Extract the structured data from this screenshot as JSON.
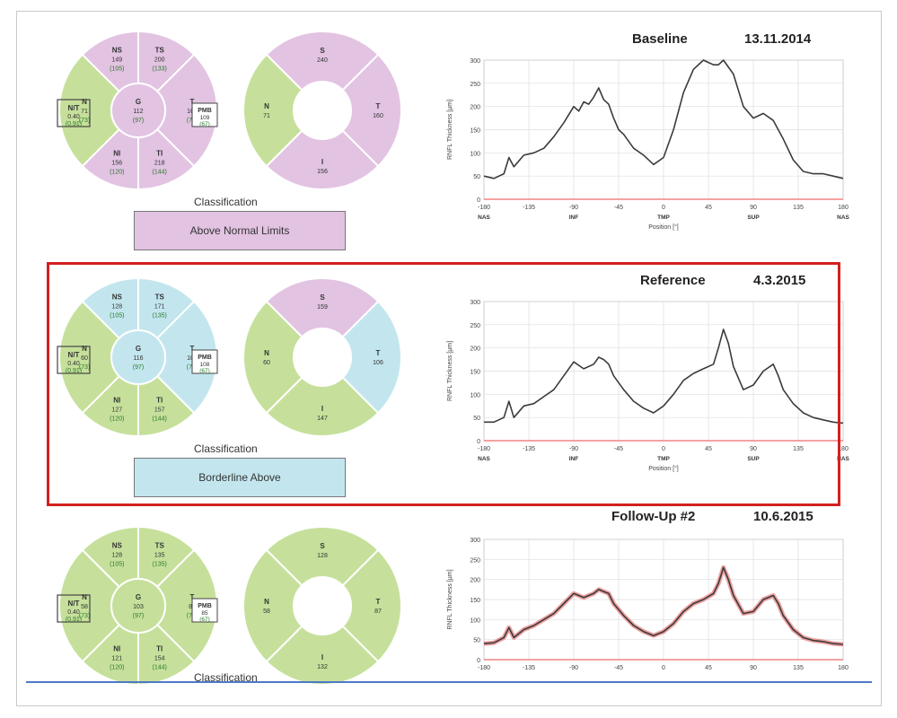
{
  "colors": {
    "above": "#e2c3e2",
    "borderline": "#c3e6ee",
    "normal": "#c6e09b",
    "ref_frame": "#d32020",
    "baseline_line": "#ee6a6a",
    "trace": "#3b3b3b",
    "band": "#e88888"
  },
  "icons": [
    "sector-map-icon"
  ],
  "panels": [
    {
      "id": "baseline",
      "title": "Baseline",
      "date": "13.11.2014",
      "classification_label": "Classification",
      "classification_result": "Above Normal Limits",
      "classification_color": "#e2c3e2",
      "sectors_left": {
        "NS": {
          "value": "149",
          "norm": "(105)",
          "status": "above"
        },
        "TS": {
          "value": "200",
          "norm": "(133)",
          "status": "above"
        },
        "N": {
          "value": "71",
          "norm": "(73)",
          "status": "normal"
        },
        "G": {
          "value": "112",
          "norm": "(97)",
          "status": "above"
        },
        "T": {
          "value": "160",
          "norm": "(75)",
          "status": "above"
        },
        "NI": {
          "value": "156",
          "norm": "(120)",
          "status": "above"
        },
        "TI": {
          "value": "218",
          "norm": "(144)",
          "status": "above"
        },
        "NT": {
          "value": "0.40",
          "norm": "(0.91)"
        },
        "PMB": {
          "value": "109",
          "norm": "(67)"
        }
      },
      "sectors_right": {
        "S": "240",
        "N": "71",
        "T": "160",
        "I": "156",
        "status": {
          "S": "above",
          "N": "normal",
          "T": "above",
          "I": "above"
        }
      }
    },
    {
      "id": "reference",
      "title": "Reference",
      "date": "4.3.2015",
      "classification_label": "Classification",
      "classification_result": "Borderline Above",
      "classification_color": "#c3e6ee",
      "sectors_left": {
        "NS": {
          "value": "128",
          "norm": "(105)",
          "status": "borderline"
        },
        "TS": {
          "value": "171",
          "norm": "(135)",
          "status": "borderline"
        },
        "N": {
          "value": "60",
          "norm": "(73)",
          "status": "normal"
        },
        "G": {
          "value": "116",
          "norm": "(97)",
          "status": "borderline"
        },
        "T": {
          "value": "106",
          "norm": "(75)",
          "status": "borderline"
        },
        "NI": {
          "value": "127",
          "norm": "(120)",
          "status": "normal"
        },
        "TI": {
          "value": "157",
          "norm": "(144)",
          "status": "normal"
        },
        "NT": {
          "value": "0.40",
          "norm": "(0.91)"
        },
        "PMB": {
          "value": "108",
          "norm": "(67)"
        }
      },
      "sectors_right": {
        "S": "159",
        "N": "60",
        "T": "106",
        "I": "147",
        "status": {
          "S": "above",
          "N": "normal",
          "T": "borderline",
          "I": "normal"
        }
      }
    },
    {
      "id": "followup2",
      "title": "Follow-Up #2",
      "date": "10.6.2015",
      "classification_label": "Classification",
      "classification_result": "",
      "classification_color": "#c6e09b",
      "sectors_left": {
        "NS": {
          "value": "128",
          "norm": "(105)",
          "status": "normal"
        },
        "TS": {
          "value": "135",
          "norm": "(135)",
          "status": "normal"
        },
        "N": {
          "value": "58",
          "norm": "(73)",
          "status": "normal"
        },
        "G": {
          "value": "103",
          "norm": "(97)",
          "status": "normal"
        },
        "T": {
          "value": "87",
          "norm": "(75)",
          "status": "normal"
        },
        "NI": {
          "value": "121",
          "norm": "(120)",
          "status": "normal"
        },
        "TI": {
          "value": "154",
          "norm": "(144)",
          "status": "normal"
        },
        "NT": {
          "value": "0.40",
          "norm": "(0.91)"
        },
        "PMB": {
          "value": "85",
          "norm": "(67)"
        }
      },
      "sectors_right": {
        "S": "128",
        "N": "58",
        "T": "87",
        "I": "132",
        "status": {
          "S": "normal",
          "N": "normal",
          "T": "normal",
          "I": "normal"
        }
      }
    }
  ],
  "chart_data": [
    {
      "type": "line",
      "panel": "baseline",
      "ylabel": "RNFL Thickness [µm]",
      "xlabel": "Position [°]",
      "ylim": [
        0,
        300
      ],
      "yticks": [
        0,
        50,
        100,
        150,
        200,
        250,
        300
      ],
      "xlim": [
        -180,
        180
      ],
      "xticks": [
        -180,
        -135,
        -90,
        -45,
        0,
        45,
        90,
        135,
        180
      ],
      "region_labels": [
        "NAS",
        "INF",
        "TMP",
        "SUP",
        "NAS"
      ],
      "grid": true,
      "series": [
        {
          "x": [
            -180,
            -170,
            -160,
            -155,
            -150,
            -140,
            -130,
            -120,
            -110,
            -100,
            -90,
            -85,
            -80,
            -75,
            -70,
            -65,
            -60,
            -55,
            -50,
            -45,
            -40,
            -30,
            -20,
            -10,
            0,
            10,
            20,
            30,
            40,
            45,
            50,
            55,
            60,
            70,
            80,
            90,
            100,
            110,
            120,
            130,
            140,
            150,
            160,
            170,
            180
          ],
          "y": [
            50,
            45,
            55,
            90,
            70,
            95,
            100,
            110,
            135,
            165,
            200,
            190,
            210,
            205,
            220,
            240,
            215,
            205,
            175,
            150,
            140,
            110,
            95,
            75,
            90,
            150,
            230,
            280,
            300,
            295,
            290,
            290,
            300,
            270,
            200,
            175,
            185,
            170,
            130,
            85,
            60,
            55,
            55,
            50,
            45
          ]
        }
      ]
    },
    {
      "type": "line",
      "panel": "reference",
      "ylabel": "RNFL Thickness [µm]",
      "xlabel": "Position [°]",
      "ylim": [
        0,
        300
      ],
      "yticks": [
        0,
        50,
        100,
        150,
        200,
        250,
        300
      ],
      "xlim": [
        -180,
        180
      ],
      "xticks": [
        -180,
        -135,
        -90,
        -45,
        0,
        45,
        90,
        135,
        180
      ],
      "region_labels": [
        "NAS",
        "INF",
        "TMP",
        "SUP",
        "NAS"
      ],
      "grid": true,
      "series": [
        {
          "x": [
            -180,
            -170,
            -160,
            -155,
            -150,
            -140,
            -130,
            -120,
            -110,
            -100,
            -90,
            -80,
            -70,
            -65,
            -60,
            -55,
            -50,
            -40,
            -30,
            -20,
            -10,
            0,
            10,
            20,
            30,
            40,
            50,
            55,
            60,
            65,
            70,
            80,
            90,
            100,
            110,
            115,
            120,
            130,
            140,
            150,
            160,
            170,
            180
          ],
          "y": [
            40,
            40,
            50,
            85,
            50,
            75,
            80,
            95,
            110,
            140,
            170,
            155,
            165,
            180,
            175,
            165,
            140,
            110,
            85,
            70,
            60,
            75,
            100,
            130,
            145,
            155,
            165,
            200,
            240,
            210,
            160,
            110,
            120,
            150,
            165,
            140,
            110,
            80,
            60,
            50,
            45,
            40,
            38
          ]
        }
      ]
    },
    {
      "type": "line",
      "panel": "followup2",
      "ylabel": "RNFL Thickness [µm]",
      "xlabel": "",
      "ylim": [
        0,
        300
      ],
      "yticks": [
        0,
        50,
        100,
        150,
        200,
        250,
        300
      ],
      "xlim": [
        -180,
        180
      ],
      "xticks": [
        -180,
        -135,
        -90,
        -45,
        0,
        45,
        90,
        135,
        180
      ],
      "region_labels": [],
      "grid": true,
      "series": [
        {
          "x": [
            -180,
            -170,
            -160,
            -155,
            -150,
            -140,
            -130,
            -120,
            -110,
            -100,
            -90,
            -80,
            -70,
            -65,
            -60,
            -55,
            -50,
            -40,
            -30,
            -20,
            -10,
            0,
            10,
            20,
            30,
            40,
            50,
            55,
            60,
            65,
            70,
            80,
            90,
            100,
            110,
            115,
            120,
            130,
            140,
            150,
            160,
            170,
            180
          ],
          "y": [
            40,
            42,
            55,
            80,
            55,
            75,
            85,
            100,
            115,
            140,
            165,
            155,
            165,
            175,
            170,
            165,
            140,
            110,
            85,
            70,
            60,
            70,
            90,
            120,
            140,
            150,
            165,
            190,
            230,
            200,
            160,
            115,
            120,
            150,
            160,
            140,
            110,
            75,
            55,
            48,
            45,
            40,
            38
          ]
        }
      ]
    }
  ]
}
